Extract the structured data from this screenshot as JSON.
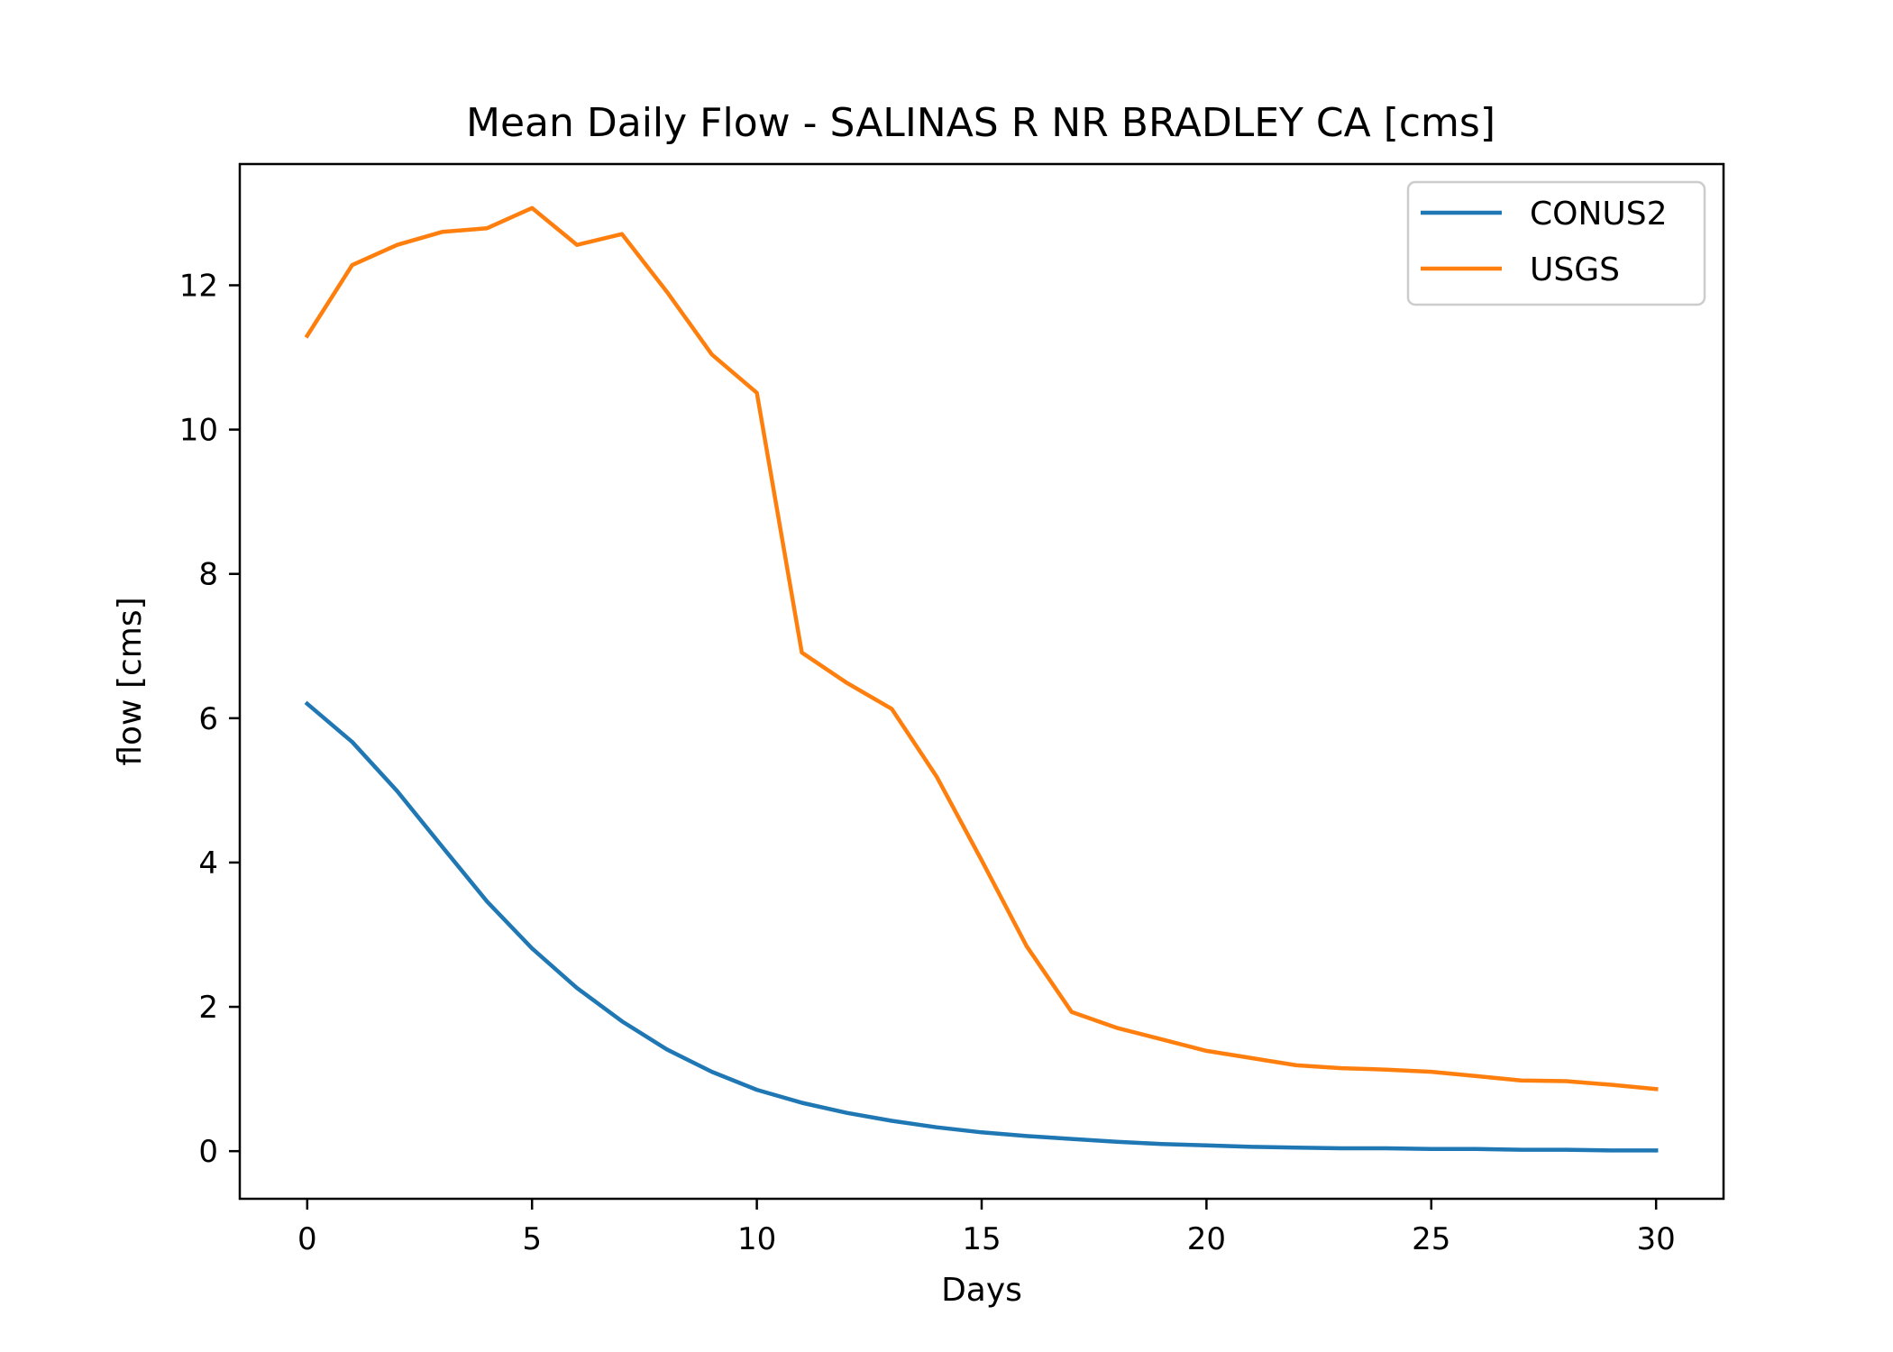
{
  "chart_data": {
    "type": "line",
    "title": "Mean Daily Flow - SALINAS R NR BRADLEY CA [cms]",
    "xlabel": "Days",
    "ylabel": "flow [cms]",
    "xlim": [
      -1.5,
      31.5
    ],
    "ylim": [
      -0.66,
      13.68
    ],
    "xticks": [
      0,
      5,
      10,
      15,
      20,
      25,
      30
    ],
    "yticks": [
      0,
      2,
      4,
      6,
      8,
      10,
      12
    ],
    "grid": false,
    "legend_position": "top-right",
    "x": [
      0,
      1,
      2,
      3,
      4,
      5,
      6,
      7,
      8,
      9,
      10,
      11,
      12,
      13,
      14,
      15,
      16,
      17,
      18,
      19,
      20,
      21,
      22,
      23,
      24,
      25,
      26,
      27,
      28,
      29,
      30
    ],
    "series": [
      {
        "name": "CONUS2",
        "color": "#1f77b4",
        "values": [
          6.2,
          5.67,
          4.99,
          4.22,
          3.46,
          2.81,
          2.26,
          1.8,
          1.41,
          1.1,
          0.85,
          0.67,
          0.53,
          0.42,
          0.33,
          0.26,
          0.21,
          0.17,
          0.13,
          0.1,
          0.08,
          0.06,
          0.05,
          0.04,
          0.04,
          0.03,
          0.03,
          0.02,
          0.02,
          0.01,
          0.01
        ]
      },
      {
        "name": "USGS",
        "color": "#ff7f0e",
        "values": [
          11.3,
          12.28,
          12.56,
          12.74,
          12.79,
          13.07,
          12.56,
          12.71,
          11.91,
          11.04,
          10.51,
          6.91,
          6.49,
          6.13,
          5.19,
          4.03,
          2.84,
          1.93,
          1.71,
          1.55,
          1.39,
          1.29,
          1.19,
          1.15,
          1.13,
          1.1,
          1.04,
          0.98,
          0.97,
          0.92,
          0.86
        ]
      }
    ]
  }
}
